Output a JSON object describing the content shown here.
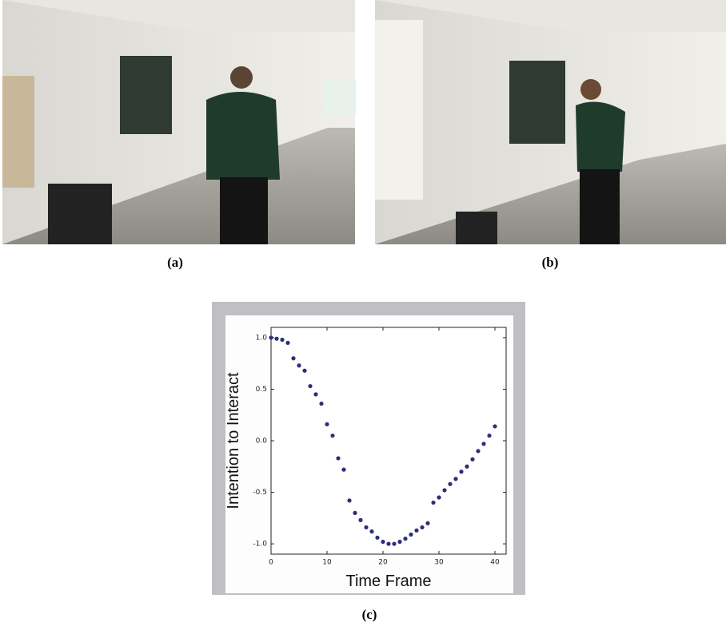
{
  "captions": [
    "(a)",
    "(b)"
  ],
  "chart_data": {
    "type": "scatter",
    "caption": "(c)",
    "xlabel": "Time Frame",
    "ylabel": "Intention to Interact",
    "x": [
      0,
      1,
      2,
      3,
      4,
      5,
      6,
      7,
      8,
      9,
      10,
      11,
      12,
      13,
      14,
      15,
      16,
      17,
      18,
      19,
      20,
      21,
      22,
      23,
      24,
      25,
      26,
      27,
      28,
      29,
      30,
      31,
      32,
      33,
      34,
      35,
      36,
      37,
      38,
      39,
      40
    ],
    "values": [
      1.0,
      0.99,
      0.98,
      0.95,
      0.8,
      0.73,
      0.68,
      0.53,
      0.45,
      0.36,
      0.16,
      0.05,
      -0.17,
      -0.28,
      -0.58,
      -0.7,
      -0.77,
      -0.84,
      -0.88,
      -0.94,
      -0.98,
      -1.0,
      -1.0,
      -0.98,
      -0.95,
      -0.91,
      -0.87,
      -0.84,
      -0.8,
      -0.6,
      -0.55,
      -0.48,
      -0.42,
      -0.37,
      -0.3,
      -0.25,
      -0.18,
      -0.1,
      -0.03,
      0.05,
      0.14
    ],
    "color": "#2e2e7a",
    "xlim": [
      0,
      42
    ],
    "ylim": [
      -1.1,
      1.1
    ],
    "xticks": [
      0,
      10,
      20,
      30,
      40
    ],
    "yticks": [
      {
        "value": -1,
        "label": "-1.0"
      },
      {
        "value": -0.5,
        "label": "-0.5"
      },
      {
        "value": 0,
        "label": "0.0"
      },
      {
        "value": 0.5,
        "label": "0.5"
      },
      {
        "value": 1,
        "label": "1.0"
      }
    ]
  }
}
